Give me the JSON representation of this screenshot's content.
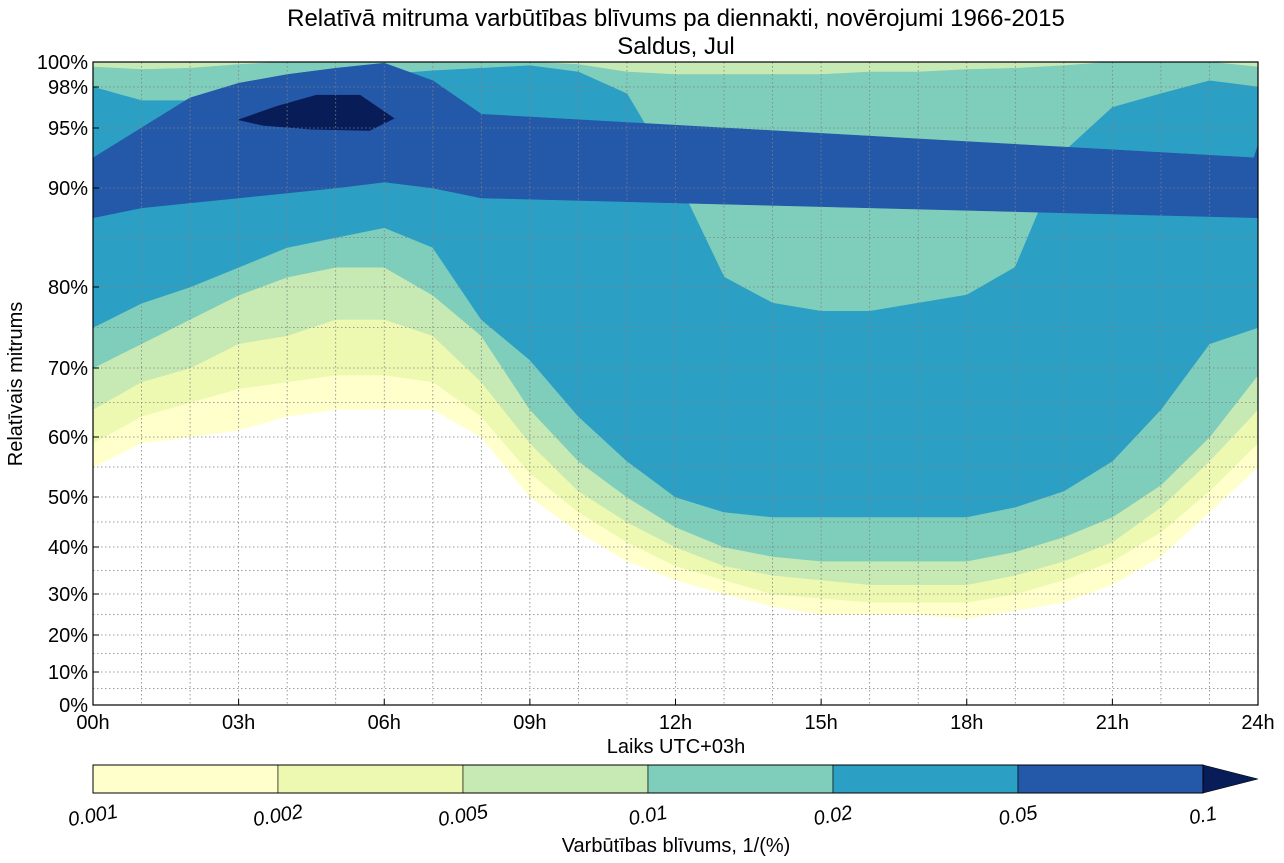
{
  "chart_data": {
    "type": "heatmap",
    "subtype": "filled-contour",
    "title": "Relatīvā mitruma varbūtības blīvums pa diennakti, novērojumi 1966-2015",
    "subtitle": "Saldus, Jul",
    "xlabel": "Laiks UTC+03h",
    "ylabel": "Relatīvais mitrums",
    "xlim": [
      0,
      24
    ],
    "x_ticks": [
      0,
      3,
      6,
      9,
      12,
      15,
      18,
      21,
      24
    ],
    "x_tick_labels": [
      "00h",
      "03h",
      "06h",
      "09h",
      "12h",
      "15h",
      "18h",
      "21h",
      "24h"
    ],
    "y_scale": "nonlinear (transformed humidity axis, compressed at low values, stretched near 100%)",
    "y_ticks": [
      0,
      10,
      20,
      30,
      40,
      50,
      60,
      70,
      80,
      90,
      95,
      98,
      100
    ],
    "y_tick_labels": [
      "0%",
      "10%",
      "20%",
      "30%",
      "40%",
      "50%",
      "60%",
      "70%",
      "80%",
      "90%",
      "95%",
      "98%",
      "100%"
    ],
    "grid": true,
    "colorbar": {
      "label": "Varbūtības blīvums, 1/(%)",
      "orientation": "horizontal",
      "placement": "bottom",
      "extend": "max",
      "levels": [
        0.001,
        0.002,
        0.005,
        0.01,
        0.02,
        0.05,
        0.1
      ],
      "level_labels": [
        "0.001",
        "0.002",
        "0.005",
        "0.01",
        "0.02",
        "0.05",
        "0.1"
      ],
      "colors": [
        "#ffffcc",
        "#edf8b1",
        "#c7e9b4",
        "#7fcdbb",
        "#2c9fc4",
        "#2458a8",
        "#081d58"
      ]
    },
    "contour_bounds": {
      "x": [
        0,
        1,
        2,
        3,
        4,
        5,
        6,
        7,
        8,
        9,
        10,
        11,
        12,
        13,
        14,
        15,
        16,
        17,
        18,
        19,
        20,
        21,
        22,
        23,
        24
      ],
      "levels": [
        {
          "level": 0.001,
          "lower": [
            55,
            59,
            60,
            61,
            63,
            64,
            64,
            64,
            60,
            50,
            43,
            37,
            33,
            30,
            27,
            25,
            25,
            25,
            24,
            26,
            28,
            32,
            38,
            47,
            55
          ],
          "upper": [
            100,
            100,
            100,
            100,
            100,
            100,
            100,
            100,
            100,
            100,
            100,
            100,
            100,
            100,
            100,
            100,
            100,
            100,
            100,
            100,
            100,
            100,
            100,
            100,
            100
          ]
        },
        {
          "level": 0.002,
          "lower": [
            59,
            63,
            65,
            67,
            68,
            69,
            69,
            68,
            63,
            54,
            47,
            41,
            36,
            33,
            30,
            29,
            28,
            28,
            28,
            30,
            33,
            37,
            43,
            51,
            59
          ],
          "upper": [
            100,
            100,
            100,
            100,
            100,
            100,
            100,
            100,
            100,
            100,
            100,
            100,
            100,
            100,
            100,
            100,
            100,
            100,
            100,
            100,
            100,
            100,
            100,
            100,
            100
          ]
        },
        {
          "level": 0.005,
          "lower": [
            64,
            68,
            70,
            73,
            74,
            76,
            76,
            74,
            68,
            59,
            51,
            45,
            40,
            36,
            34,
            33,
            32,
            32,
            32,
            34,
            37,
            41,
            48,
            56,
            64
          ],
          "upper": [
            100,
            100,
            100,
            100,
            100,
            100,
            100,
            100,
            100,
            100,
            100,
            100,
            100,
            100,
            100,
            100,
            100,
            100,
            100,
            100,
            100,
            100,
            100,
            100,
            100
          ]
        },
        {
          "level": 0.01,
          "lower": [
            70,
            73,
            76,
            79,
            81,
            82,
            82,
            79,
            74,
            64,
            56,
            50,
            44,
            40,
            38,
            37,
            37,
            37,
            37,
            39,
            42,
            46,
            52,
            60,
            69
          ],
          "upper": [
            99.6,
            99.4,
            99.5,
            99.8,
            100,
            100,
            100,
            100,
            100,
            100,
            99.8,
            99.2,
            99,
            99,
            99,
            99,
            99.2,
            99.2,
            99.4,
            99.5,
            99.7,
            100,
            100,
            100,
            99.6
          ]
        },
        {
          "level": 0.02,
          "lower": [
            75,
            78,
            80,
            82,
            84,
            85,
            86,
            84,
            76,
            71,
            63,
            56,
            50,
            47,
            46,
            46,
            46,
            46,
            46,
            48,
            51,
            56,
            64,
            73,
            75
          ],
          "upper": [
            98,
            97,
            97,
            97.5,
            98,
            98.5,
            99,
            99.3,
            99.5,
            99.7,
            99.2,
            97.5,
            91,
            81,
            78,
            77,
            77,
            78,
            79,
            82,
            93,
            96.5,
            97.5,
            98.5,
            98
          ]
        },
        {
          "level": 0.05,
          "lower": [
            87,
            88,
            88.5,
            89,
            89.5,
            90,
            90.5,
            90,
            89,
            null,
            null,
            null,
            null,
            null,
            null,
            null,
            null,
            null,
            null,
            null,
            null,
            null,
            null,
            null,
            87
          ],
          "upper": [
            92.5,
            95,
            97.2,
            98.3,
            99,
            99.5,
            99.9,
            98.5,
            96,
            null,
            null,
            null,
            null,
            null,
            null,
            null,
            null,
            null,
            null,
            null,
            null,
            null,
            null,
            null,
            92.5
          ]
        },
        {
          "level": 0.1,
          "region": "hours 03-06, humidity about 95%-98%"
        }
      ]
    }
  }
}
